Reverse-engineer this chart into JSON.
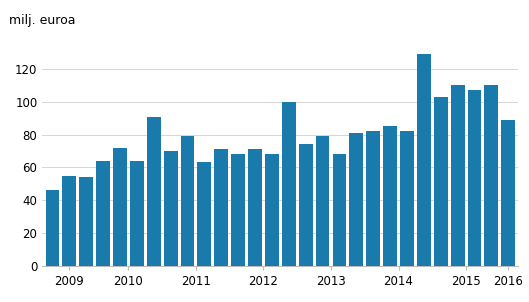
{
  "values": [
    46,
    55,
    54,
    64,
    72,
    64,
    91,
    70,
    79,
    63,
    71,
    68,
    71,
    68,
    100,
    74,
    79,
    68,
    81,
    82,
    85,
    82,
    129,
    103,
    110,
    107,
    110,
    89
  ],
  "bar_color": "#1a7aab",
  "ylabel": "milj. euroa",
  "ylim": [
    0,
    140
  ],
  "yticks": [
    0,
    20,
    40,
    60,
    80,
    100,
    120
  ],
  "year_labels": [
    "2009",
    "2010",
    "2011",
    "2012",
    "2013",
    "2014",
    "2015",
    "2016"
  ],
  "year_groups": [
    [
      0,
      1,
      2
    ],
    [
      3,
      4,
      5,
      6
    ],
    [
      7,
      8,
      9,
      10
    ],
    [
      11,
      12,
      13,
      14
    ],
    [
      15,
      16,
      17,
      18
    ],
    [
      19,
      20,
      21,
      22
    ],
    [
      23,
      24,
      25,
      26
    ],
    [
      27
    ]
  ],
  "background_color": "#ffffff",
  "grid_color": "#d0d0d0",
  "bar_width": 0.82,
  "tick_fontsize": 8.5,
  "ylabel_fontsize": 9
}
